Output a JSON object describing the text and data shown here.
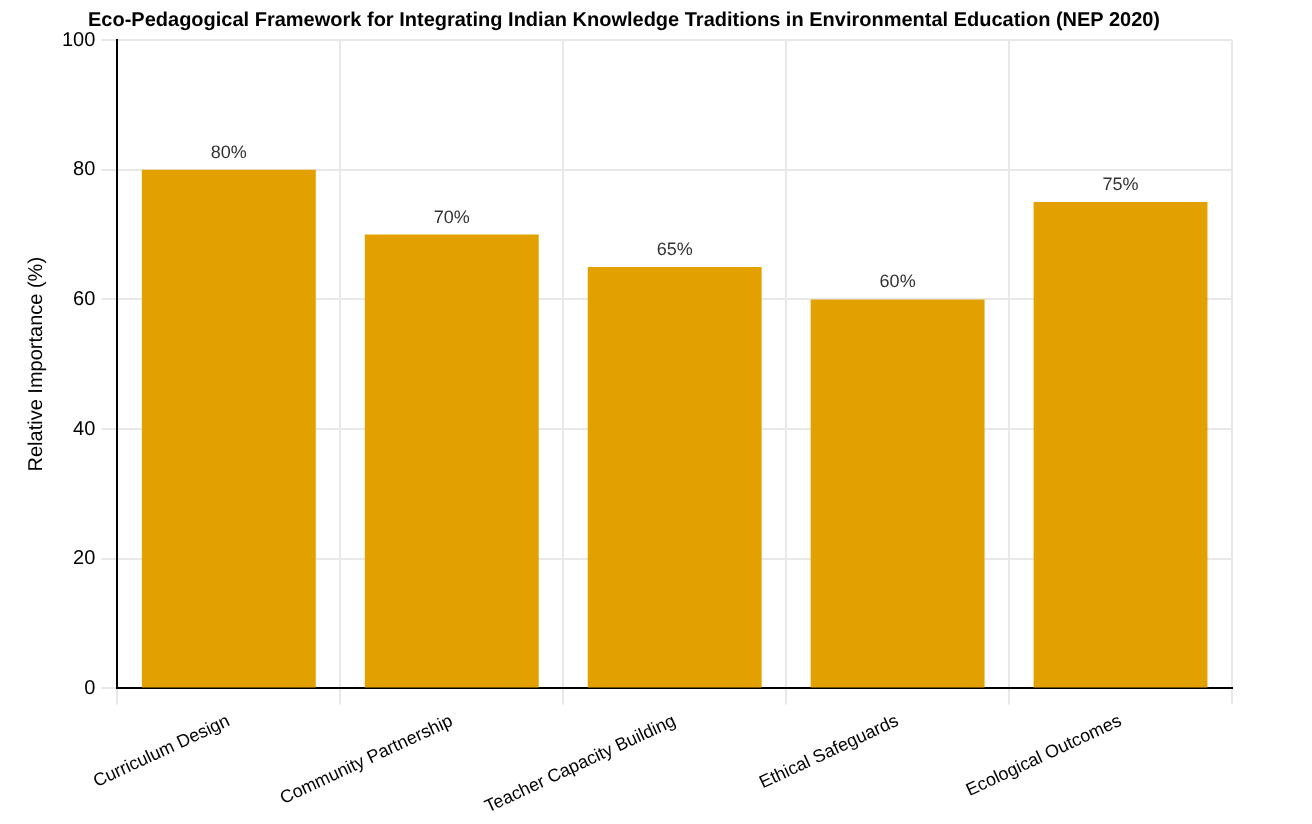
{
  "chart_data": {
    "type": "bar",
    "title": "Eco-Pedagogical Framework for Integrating Indian Knowledge Traditions in Environmental Education (NEP 2020)",
    "ylabel": "Relative Importance (%)",
    "categories": [
      "Curriculum Design",
      "Community Partnership",
      "Teacher Capacity Building",
      "Ethical Safeguards",
      "Ecological Outcomes"
    ],
    "values": [
      80,
      70,
      65,
      60,
      75
    ],
    "color": "#e3a100",
    "value_labels": [
      "80%",
      "70%",
      "65%",
      "60%",
      "75%"
    ],
    "ylim": [
      0,
      100
    ],
    "yticks": [
      0,
      20,
      40,
      60,
      80,
      100
    ],
    "grid": true,
    "legend": false
  }
}
